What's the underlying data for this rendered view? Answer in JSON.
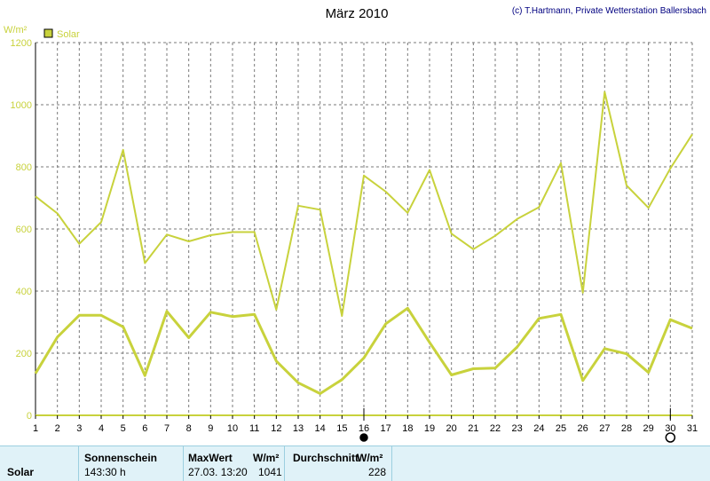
{
  "chart_data": {
    "type": "line",
    "title": "März 2010",
    "credit": "(c) T.Hartmann, Private Wetterstation Ballersbach",
    "ylabel": "W/m²",
    "ylim": [
      0,
      1200
    ],
    "yticks": [
      0,
      200,
      400,
      600,
      800,
      1000,
      1200
    ],
    "categories": [
      "1",
      "2",
      "3",
      "4",
      "5",
      "6",
      "7",
      "8",
      "9",
      "10",
      "11",
      "12",
      "13",
      "14",
      "15",
      "16",
      "17",
      "18",
      "19",
      "20",
      "21",
      "22",
      "23",
      "24",
      "25",
      "26",
      "27",
      "28",
      "29",
      "30",
      "31"
    ],
    "grid": true,
    "legend": "top-left",
    "series": [
      {
        "name": "Solar",
        "role": "max",
        "color": "#c8d23c",
        "values": [
          705,
          650,
          552,
          622,
          855,
          490,
          582,
          560,
          580,
          590,
          590,
          340,
          675,
          662,
          320,
          772,
          720,
          652,
          790,
          585,
          535,
          578,
          632,
          670,
          812,
          395,
          1041,
          740,
          668,
          795,
          905
        ]
      },
      {
        "name": "",
        "role": "average",
        "color": "#c8d23c",
        "values": [
          135,
          252,
          322,
          322,
          285,
          128,
          335,
          250,
          332,
          318,
          325,
          175,
          105,
          70,
          115,
          185,
          295,
          345,
          235,
          130,
          150,
          152,
          220,
          312,
          325,
          112,
          215,
          198,
          138,
          308,
          280
        ]
      }
    ],
    "markers": [
      {
        "day": "16",
        "symbol": "filled-circle"
      },
      {
        "day": "30",
        "symbol": "open-circle"
      }
    ]
  },
  "summary": {
    "row_label": "Solar",
    "sunshine_header": "Sonnenschein",
    "sunshine_value": "143:30 h",
    "max_header": "MaxWert",
    "max_unit": "W/m²",
    "max_datetime": "27.03.  13:20",
    "max_value": "1041",
    "avg_header": "Durchschnitt",
    "avg_unit": "W/m²",
    "avg_value": "228"
  }
}
